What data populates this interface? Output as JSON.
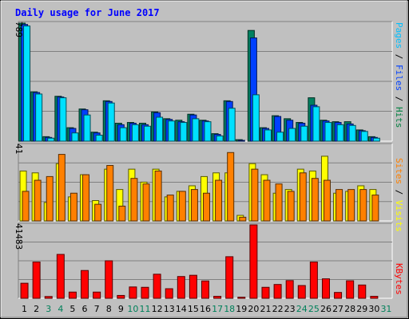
{
  "chart_data": {
    "type": "bar",
    "title": "Daily usage for June 2017",
    "days": [
      "1",
      "2",
      "3",
      "4",
      "5",
      "6",
      "7",
      "8",
      "9",
      "10",
      "11",
      "12",
      "13",
      "14",
      "15",
      "16",
      "17",
      "18",
      "19",
      "20",
      "21",
      "22",
      "23",
      "24",
      "25",
      "26",
      "27",
      "28",
      "29",
      "30",
      "31"
    ],
    "weekend_days": [
      "3",
      "4",
      "10",
      "11",
      "17",
      "18",
      "24",
      "25",
      "31"
    ],
    "panels": [
      {
        "max_label": "789",
        "ylim": [
          0,
          789
        ],
        "right_label": [
          "Pages",
          " / ",
          "Files",
          " / ",
          "Hits"
        ],
        "right_label_colors": [
          "#00c0ff",
          "#000000",
          "#0040ff",
          "#000000",
          "#008040"
        ],
        "series": [
          {
            "name": "Hits",
            "color": "#008060",
            "values": [
              789,
              330,
              30,
              300,
              90,
              215,
              60,
              270,
              120,
              125,
              120,
              195,
              150,
              140,
              180,
              140,
              50,
              270,
              10,
              740,
              90,
              170,
              150,
              125,
              290,
              140,
              130,
              130,
              75,
              30,
              0
            ]
          },
          {
            "name": "Files",
            "color": "#0040ff",
            "values": [
              780,
              325,
              25,
              295,
              85,
              210,
              55,
              265,
              110,
              120,
              110,
              190,
              145,
              130,
              175,
              135,
              45,
              265,
              5,
              690,
              85,
              165,
              140,
              120,
              240,
              135,
              125,
              115,
              70,
              25,
              0
            ]
          },
          {
            "name": "Pages",
            "color": "#00e0ff",
            "values": [
              770,
              315,
              20,
              290,
              55,
              175,
              40,
              255,
              90,
              110,
              100,
              160,
              135,
              125,
              150,
              130,
              35,
              220,
              0,
              310,
              75,
              60,
              85,
              100,
              230,
              125,
              110,
              105,
              65,
              20,
              0
            ]
          }
        ]
      },
      {
        "max_label": "41",
        "ylim": [
          0,
          41
        ],
        "right_label": [
          "Sites",
          " / ",
          "Visits"
        ],
        "right_label_colors": [
          "#ff8000",
          "#000000",
          "#ffff00"
        ],
        "series": [
          {
            "name": "Visits",
            "color": "#ffff00",
            "values": [
              27,
              26,
              10,
              31,
              13,
              25,
              11,
              28,
              17,
              28,
              21,
              28,
              13,
              16,
              19,
              24,
              26,
              26,
              3,
              31,
              25,
              15,
              17,
              28,
              27,
              35,
              15,
              16,
              19,
              17,
              0
            ]
          },
          {
            "name": "Sites",
            "color": "#ff8000",
            "values": [
              16,
              22,
              24,
              36,
              15,
              25,
              9,
              30,
              8,
              23,
              20,
              27,
              14,
              16,
              17,
              15,
              22,
              37,
              2,
              28,
              22,
              20,
              16,
              26,
              23,
              22,
              17,
              17,
              17,
              14,
              0
            ]
          }
        ]
      },
      {
        "max_label": "41483",
        "ylim": [
          0,
          41483
        ],
        "right_label": [
          "KBytes"
        ],
        "right_label_colors": [
          "#ff0000"
        ],
        "series": [
          {
            "name": "KBytes",
            "color": "#ff0000",
            "values": [
              8500,
              20500,
              1000,
              24800,
              3500,
              15700,
              3500,
              21200,
              1600,
              6400,
              6200,
              13600,
              5400,
              12300,
              13000,
              9800,
              1100,
              23500,
              600,
              41483,
              6200,
              7800,
              10000,
              7200,
              20500,
              11000,
              3300,
              9900,
              7500,
              1100,
              0
            ]
          }
        ]
      }
    ]
  }
}
